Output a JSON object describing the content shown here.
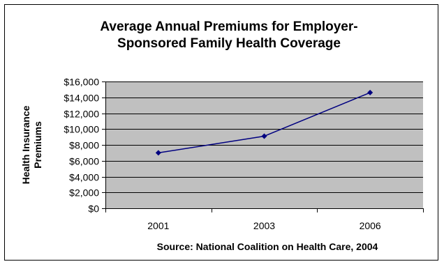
{
  "chart_data": {
    "type": "line",
    "title_lines": [
      "Average Annual Premiums for Employer-",
      "Sponsored Family Health Coverage"
    ],
    "xlabel": "Source: National Coalition on Health Care, 2004",
    "ylabel_lines": [
      "Health Insurance",
      "Premiums"
    ],
    "categories": [
      "2001",
      "2003",
      "2006"
    ],
    "series": [
      {
        "values": [
          7000,
          9100,
          14600
        ]
      }
    ],
    "ylim": [
      0,
      16000
    ],
    "y_ticks": [
      0,
      2000,
      4000,
      6000,
      8000,
      10000,
      12000,
      14000,
      16000
    ],
    "y_tick_labels": [
      "$0",
      "$2,000",
      "$4,000",
      "$6,000",
      "$8,000",
      "$10,000",
      "$12,000",
      "$14,000",
      "$16,000"
    ],
    "grid": true,
    "legend": "none",
    "colors": {
      "plot_background": "#C0C0C0",
      "gridline": "#000000",
      "series_line": "#000080",
      "marker": "#000080"
    }
  }
}
